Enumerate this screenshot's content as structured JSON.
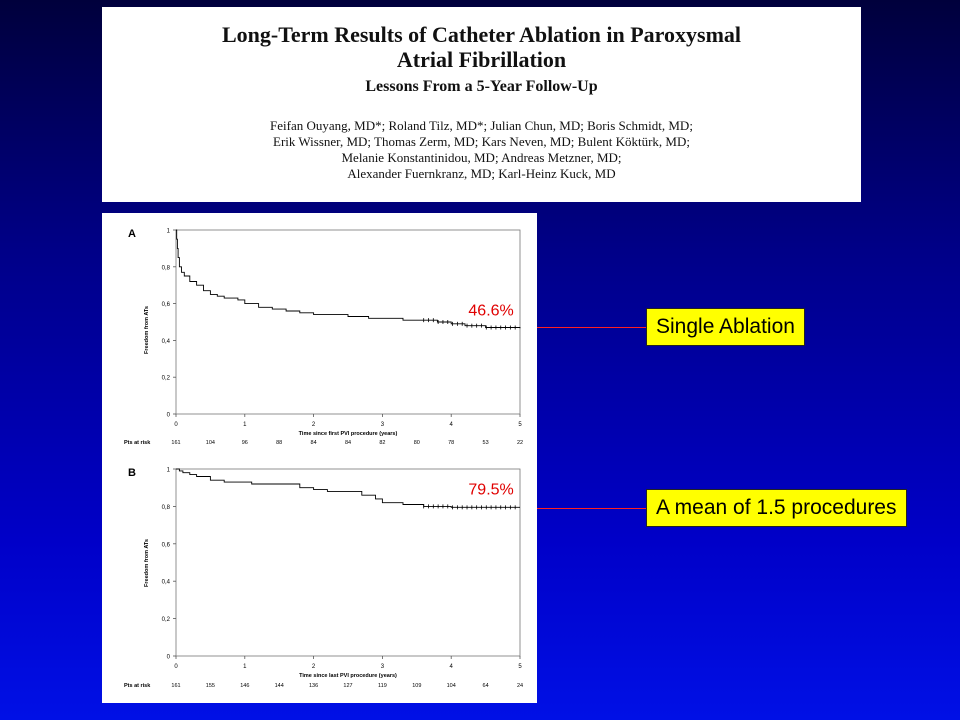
{
  "paper": {
    "title_line1": "Long-Term Results of Catheter Ablation in Paroxysmal",
    "title_line2": "Atrial Fibrillation",
    "subtitle": "Lessons From a 5-Year Follow-Up",
    "authors": [
      "Feifan Ouyang, MD*; Roland Tilz, MD*; Julian Chun, MD; Boris Schmidt, MD;",
      "Erik Wissner, MD; Thomas Zerm, MD; Kars Neven, MD; Bulent Köktürk, MD;",
      "Melanie Konstantinidou, MD; Andreas Metzner, MD;",
      "Alexander Fuernkranz, MD; Karl-Heinz Kuck, MD"
    ]
  },
  "callouts": {
    "single": "Single Ablation",
    "mean": "A mean of 1.5 procedures"
  },
  "colors": {
    "callout_bg": "#ffff00",
    "leader": "#ff2020",
    "label": "#e00000",
    "curve": "#000000"
  },
  "chart_data": [
    {
      "type": "line",
      "panel": "A",
      "title": "",
      "xlabel": "Time since first PVI procedure (years)",
      "ylabel": "Freedom from ATs",
      "xlim": [
        0,
        5
      ],
      "ylim": [
        0,
        1
      ],
      "xticks": [
        "0",
        "1",
        "2",
        "3",
        "4",
        "5"
      ],
      "yticks": [
        "0",
        "0,2",
        "0,4",
        "0,6",
        "0,8",
        "1"
      ],
      "series": [
        {
          "name": "Single ablation",
          "x": [
            0,
            0.01,
            0.02,
            0.03,
            0.05,
            0.08,
            0.12,
            0.2,
            0.3,
            0.4,
            0.5,
            0.6,
            0.7,
            0.9,
            1.0,
            1.2,
            1.4,
            1.6,
            1.8,
            2.0,
            2.2,
            2.5,
            2.8,
            3.0,
            3.3,
            3.6,
            3.8,
            4.0,
            4.2,
            4.5,
            5.0
          ],
          "y": [
            1.0,
            0.95,
            0.9,
            0.85,
            0.8,
            0.77,
            0.75,
            0.72,
            0.7,
            0.67,
            0.65,
            0.64,
            0.63,
            0.62,
            0.6,
            0.58,
            0.57,
            0.56,
            0.55,
            0.54,
            0.54,
            0.53,
            0.52,
            0.52,
            0.51,
            0.51,
            0.5,
            0.49,
            0.48,
            0.47,
            0.466
          ]
        }
      ],
      "annotation": "46.6%",
      "risk_label": "Pts at risk",
      "at_risk": [
        "161",
        "104",
        "96",
        "88",
        "84",
        "84",
        "82",
        "80",
        "78",
        "53",
        "22"
      ]
    },
    {
      "type": "line",
      "panel": "B",
      "title": "",
      "xlabel": "Time since last PVI procedure (years)",
      "ylabel": "Freedom from ATs",
      "xlim": [
        0,
        5
      ],
      "ylim": [
        0,
        1
      ],
      "xticks": [
        "0",
        "1",
        "2",
        "3",
        "4",
        "5"
      ],
      "yticks": [
        "0",
        "0,2",
        "0,4",
        "0,6",
        "0,8",
        "1"
      ],
      "series": [
        {
          "name": "Mean of 1.5 procedures",
          "x": [
            0,
            0.05,
            0.1,
            0.2,
            0.3,
            0.5,
            0.7,
            0.9,
            1.1,
            1.3,
            1.5,
            1.8,
            2.0,
            2.2,
            2.5,
            2.7,
            2.9,
            3.0,
            3.3,
            3.6,
            3.8,
            4.0,
            5.0
          ],
          "y": [
            1.0,
            0.99,
            0.98,
            0.97,
            0.96,
            0.94,
            0.93,
            0.93,
            0.92,
            0.92,
            0.92,
            0.9,
            0.89,
            0.88,
            0.88,
            0.86,
            0.84,
            0.82,
            0.81,
            0.8,
            0.8,
            0.795,
            0.795
          ]
        }
      ],
      "annotation": "79.5%",
      "risk_label": "Pts at risk",
      "at_risk": [
        "161",
        "155",
        "146",
        "144",
        "136",
        "127",
        "119",
        "109",
        "104",
        "64",
        "24"
      ]
    }
  ]
}
